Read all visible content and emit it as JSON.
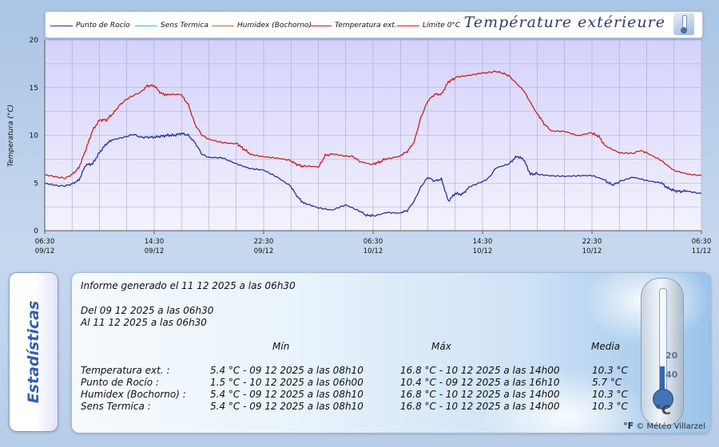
{
  "legend": [
    {
      "label": "Punto de Rocío",
      "color": "#2b2f9e"
    },
    {
      "label": "Sens Termica",
      "color": "#28c2cc"
    },
    {
      "label": "Humidex (Bochorno)",
      "color": "#d2691e"
    },
    {
      "label": "Temperatura ext.",
      "color": "#cc1f1f"
    },
    {
      "label": "Límite 0°C",
      "color": "#cc1f1f"
    }
  ],
  "title": "Température extérieure",
  "chart_data": {
    "type": "line",
    "title": "Température extérieure",
    "ylabel": "Temperatura (°C)",
    "xlabel": "",
    "ylim": [
      0,
      20
    ],
    "yticks": [
      0,
      5,
      10,
      15,
      20
    ],
    "xlim": [
      0,
      48
    ],
    "x_ticks": [
      {
        "x": 0,
        "label_time": "06:30",
        "label_date": "09/12"
      },
      {
        "x": 8,
        "label_time": "14:30",
        "label_date": "09/12"
      },
      {
        "x": 16,
        "label_time": "22:30",
        "label_date": "09/12"
      },
      {
        "x": 24,
        "label_time": "06:30",
        "label_date": "10/12"
      },
      {
        "x": 32,
        "label_time": "14:30",
        "label_date": "10/12"
      },
      {
        "x": 40,
        "label_time": "22:30",
        "label_date": "10/12"
      },
      {
        "x": 48,
        "label_time": "06:30",
        "label_date": "11/12"
      }
    ],
    "x_unit": "hours since 09/12 06:30",
    "grid": true,
    "legend_position": "top",
    "series": [
      {
        "name": "Temperatura ext.",
        "color": "#cc1f1f",
        "points": [
          [
            0,
            5.8
          ],
          [
            1,
            5.6
          ],
          [
            1.5,
            5.5
          ],
          [
            2,
            5.9
          ],
          [
            2.5,
            6.6
          ],
          [
            3,
            8.5
          ],
          [
            3.5,
            10.5
          ],
          [
            4,
            11.6
          ],
          [
            4.5,
            11.6
          ],
          [
            5,
            12.3
          ],
          [
            5.5,
            13.2
          ],
          [
            6,
            13.8
          ],
          [
            6.5,
            14.2
          ],
          [
            7,
            14.5
          ],
          [
            7.5,
            15.2
          ],
          [
            8,
            15.2
          ],
          [
            8.5,
            14.4
          ],
          [
            9,
            14.2
          ],
          [
            10,
            14.2
          ],
          [
            10.5,
            13.2
          ],
          [
            11,
            11.1
          ],
          [
            11.5,
            10.0
          ],
          [
            12,
            9.6
          ],
          [
            13,
            9.3
          ],
          [
            14,
            9.2
          ],
          [
            14.5,
            8.6
          ],
          [
            15,
            8.1
          ],
          [
            16,
            7.8
          ],
          [
            17,
            7.6
          ],
          [
            18,
            7.3
          ],
          [
            18.5,
            6.9
          ],
          [
            19,
            6.7
          ],
          [
            20,
            6.6
          ],
          [
            20.5,
            7.9
          ],
          [
            21,
            8.0
          ],
          [
            22,
            7.8
          ],
          [
            22.5,
            7.8
          ],
          [
            23,
            7.3
          ],
          [
            24,
            7.0
          ],
          [
            24.5,
            7.2
          ],
          [
            25,
            7.6
          ],
          [
            26,
            7.9
          ],
          [
            26.5,
            8.3
          ],
          [
            27,
            9.3
          ],
          [
            27.5,
            11.9
          ],
          [
            28,
            13.6
          ],
          [
            28.5,
            14.3
          ],
          [
            29,
            14.3
          ],
          [
            29.5,
            15.6
          ],
          [
            30,
            16.0
          ],
          [
            31,
            16.2
          ],
          [
            32,
            16.5
          ],
          [
            32.5,
            16.6
          ],
          [
            33,
            16.7
          ],
          [
            33.5,
            16.5
          ],
          [
            34,
            16.2
          ],
          [
            35,
            14.8
          ],
          [
            36,
            12.3
          ],
          [
            36.5,
            11.2
          ],
          [
            37,
            10.5
          ],
          [
            38,
            10.4
          ],
          [
            39,
            9.9
          ],
          [
            40,
            10.2
          ],
          [
            40.5,
            9.9
          ],
          [
            41,
            8.8
          ],
          [
            42,
            8.1
          ],
          [
            43,
            8.1
          ],
          [
            43.5,
            8.4
          ],
          [
            44,
            8.2
          ],
          [
            45,
            7.5
          ],
          [
            46,
            6.4
          ],
          [
            47,
            6.0
          ],
          [
            48,
            5.8
          ]
        ]
      },
      {
        "name": "Punto de Rocío",
        "color": "#2b2f9e",
        "points": [
          [
            0,
            4.9
          ],
          [
            1,
            4.7
          ],
          [
            1.5,
            4.7
          ],
          [
            2,
            4.9
          ],
          [
            2.5,
            5.3
          ],
          [
            3,
            6.9
          ],
          [
            3.5,
            7.0
          ],
          [
            4,
            8.2
          ],
          [
            4.5,
            9.1
          ],
          [
            5,
            9.6
          ],
          [
            6,
            9.9
          ],
          [
            6.5,
            10.1
          ],
          [
            7,
            9.8
          ],
          [
            7.5,
            9.8
          ],
          [
            8,
            9.8
          ],
          [
            8.5,
            9.9
          ],
          [
            9,
            10.0
          ],
          [
            9.5,
            10.0
          ],
          [
            10,
            10.2
          ],
          [
            10.5,
            10.0
          ],
          [
            11,
            9.2
          ],
          [
            11.5,
            8.0
          ],
          [
            12,
            7.7
          ],
          [
            13,
            7.7
          ],
          [
            14,
            7.1
          ],
          [
            15,
            6.6
          ],
          [
            16,
            6.4
          ],
          [
            17,
            5.6
          ],
          [
            18,
            4.6
          ],
          [
            18.5,
            3.5
          ],
          [
            19,
            2.8
          ],
          [
            20,
            2.3
          ],
          [
            21,
            2.1
          ],
          [
            22,
            2.7
          ],
          [
            23,
            2.1
          ],
          [
            23.5,
            1.6
          ],
          [
            24,
            1.6
          ],
          [
            25,
            2.0
          ],
          [
            26,
            1.9
          ],
          [
            26.5,
            2.1
          ],
          [
            27,
            3.1
          ],
          [
            27.5,
            4.6
          ],
          [
            28,
            5.6
          ],
          [
            28.5,
            5.2
          ],
          [
            29,
            5.4
          ],
          [
            29.5,
            3.1
          ],
          [
            30,
            3.9
          ],
          [
            30.5,
            3.8
          ],
          [
            31,
            4.5
          ],
          [
            32,
            5.1
          ],
          [
            32.5,
            5.6
          ],
          [
            33,
            6.6
          ],
          [
            34,
            7.1
          ],
          [
            34.5,
            7.8
          ],
          [
            35,
            7.5
          ],
          [
            35.5,
            5.9
          ],
          [
            36,
            6.0
          ],
          [
            37,
            5.8
          ],
          [
            38,
            5.7
          ],
          [
            39,
            5.7
          ],
          [
            40,
            5.7
          ],
          [
            41,
            5.2
          ],
          [
            41.5,
            4.8
          ],
          [
            42,
            5.1
          ],
          [
            43,
            5.6
          ],
          [
            44,
            5.3
          ],
          [
            45,
            5.1
          ],
          [
            45.5,
            4.5
          ],
          [
            46,
            4.2
          ],
          [
            46.5,
            4.1
          ],
          [
            47,
            4.2
          ],
          [
            48,
            3.9
          ]
        ]
      }
    ]
  },
  "stats": {
    "tab_label": "Estadísticas",
    "generated": "Informe generado el 11 12 2025 a las 06h30",
    "from": "Del 09 12 2025 a las 06h30",
    "to": "Al 11 12 2025 a las 06h30",
    "col_min": "Mín",
    "col_max": "Máx",
    "col_avg": "Media",
    "rows": [
      {
        "label": "Temperatura ext. :",
        "min": "5.4 °C - 09 12 2025 a las 08h10",
        "max": "16.8 °C - 10 12 2025 a las 14h00",
        "avg": "10.3 °C"
      },
      {
        "label": "Punto de Rocío :",
        "min": "1.5 °C - 10 12 2025 a las 06h00",
        "max": "10.4 °C - 09 12 2025 a las 16h10",
        "avg": "5.7 °C"
      },
      {
        "label": "Humidex (Bochorno) :",
        "min": "5.4 °C - 09 12 2025 a las 08h10",
        "max": "16.8 °C - 10 12 2025 a las 14h00",
        "avg": "10.3 °C"
      },
      {
        "label": "Sens Termica :",
        "min": "5.4 °C - 09 12 2025 a las 08h10",
        "max": "16.8 °C - 10 12 2025 a las 14h00",
        "avg": "10.3 °C"
      }
    ],
    "thermo_scale": [
      "20",
      "40"
    ],
    "thermo_unit_f": "°F",
    "thermo_unit_c": "°C",
    "copyright": "© Météo Villarzel"
  }
}
